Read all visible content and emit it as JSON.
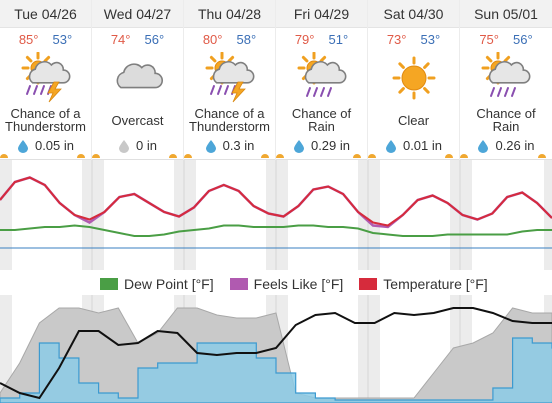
{
  "days": [
    {
      "label": "Tue 04/26",
      "hi": "85°",
      "lo": "53°",
      "icon": "thunderstorm-rain-icon",
      "cond_line1": "Chance of a",
      "cond_line2": "Thunderstorm",
      "precip": "0.05 in",
      "drop_color": "#4da6d8"
    },
    {
      "label": "Wed 04/27",
      "hi": "74°",
      "lo": "56°",
      "icon": "overcast-cloud-icon",
      "cond_line1": "Overcast",
      "cond_line2": "",
      "precip": "0 in",
      "drop_color": "#c8c8c8"
    },
    {
      "label": "Thu 04/28",
      "hi": "80°",
      "lo": "58°",
      "icon": "thunderstorm-rain-icon",
      "cond_line1": "Chance of a",
      "cond_line2": "Thunderstorm",
      "precip": "0.3 in",
      "drop_color": "#4da6d8"
    },
    {
      "label": "Fri 04/29",
      "hi": "79°",
      "lo": "51°",
      "icon": "sun-cloud-rain-icon",
      "cond_line1": "Chance of",
      "cond_line2": "Rain",
      "precip": "0.29 in",
      "drop_color": "#4da6d8"
    },
    {
      "label": "Sat 04/30",
      "hi": "73°",
      "lo": "53°",
      "icon": "sun-clear-icon",
      "cond_line1": "Clear",
      "cond_line2": "",
      "precip": "0.01 in",
      "drop_color": "#4da6d8"
    },
    {
      "label": "Sun 05/01",
      "hi": "75°",
      "lo": "56°",
      "icon": "sun-cloud-rain-icon",
      "cond_line1": "Chance of",
      "cond_line2": "Rain",
      "precip": "0.26 in",
      "drop_color": "#4da6d8"
    }
  ],
  "legend": [
    {
      "label": "Dew Point [°F]",
      "color": "#4a9e45"
    },
    {
      "label": "Feels Like [°F]",
      "color": "#b05ab0"
    },
    {
      "label": "Temperature [°F]",
      "color": "#d62b3c"
    }
  ],
  "colors": {
    "temperature": "#d62b3c",
    "feels_like": "#b05ab0",
    "dew_point": "#4a9e45",
    "freezing_line": "#3a7fc0",
    "night_band": "#ececec",
    "cloud_fill": "#c9c9c9",
    "precip_fill": "#8ccbe6",
    "precip_line": "#3c9ad0",
    "pressure_line": "#111111"
  },
  "chart_data": [
    {
      "type": "line",
      "series": [
        {
          "name": "Temperature [°F]",
          "values": [
            70,
            82,
            85,
            80,
            68,
            60,
            57,
            62,
            72,
            74,
            68,
            62,
            59,
            65,
            76,
            80,
            76,
            66,
            61,
            59,
            66,
            77,
            79,
            74,
            62,
            55,
            53,
            60,
            70,
            73,
            68,
            60,
            57,
            61,
            72,
            75,
            68,
            58
          ]
        },
        {
          "name": "Feels Like [°F]",
          "values": [
            70,
            82,
            85,
            80,
            68,
            60,
            55,
            62,
            72,
            74,
            68,
            62,
            59,
            65,
            76,
            80,
            76,
            66,
            61,
            59,
            66,
            77,
            79,
            74,
            62,
            53,
            52,
            60,
            70,
            73,
            68,
            60,
            57,
            61,
            72,
            75,
            68,
            58
          ]
        },
        {
          "name": "Dew Point [°F]",
          "values": [
            50,
            50,
            51,
            52,
            52,
            53,
            52,
            50,
            48,
            46,
            46,
            47,
            49,
            50,
            51,
            53,
            53,
            52,
            52,
            52,
            53,
            53,
            52,
            52,
            51,
            48,
            47,
            46,
            46,
            46,
            47,
            47,
            47,
            47,
            47,
            49,
            50,
            50
          ]
        }
      ]
    },
    {
      "type": "area",
      "series": [
        {
          "name": "Cloud Cover",
          "values": [
            10,
            40,
            80,
            95,
            95,
            90,
            95,
            60,
            70,
            95,
            95,
            88,
            85,
            85,
            90,
            10,
            5,
            5,
            5,
            5,
            5,
            5,
            30,
            55,
            60,
            70,
            95,
            90,
            90
          ]
        },
        {
          "name": "Precipitation",
          "values": [
            5,
            10,
            60,
            45,
            20,
            10,
            5,
            35,
            40,
            40,
            60,
            60,
            60,
            45,
            30,
            10,
            5,
            3,
            3,
            3,
            3,
            3,
            3,
            3,
            3,
            15,
            65,
            60,
            55
          ]
        },
        {
          "name": "Pressure",
          "values": [
            20,
            10,
            5,
            35,
            72,
            72,
            58,
            60,
            72,
            70,
            50,
            48,
            50,
            50,
            55,
            78,
            88,
            90,
            80,
            80,
            90,
            88,
            90,
            95,
            95,
            90,
            82,
            80,
            80
          ]
        }
      ]
    }
  ]
}
